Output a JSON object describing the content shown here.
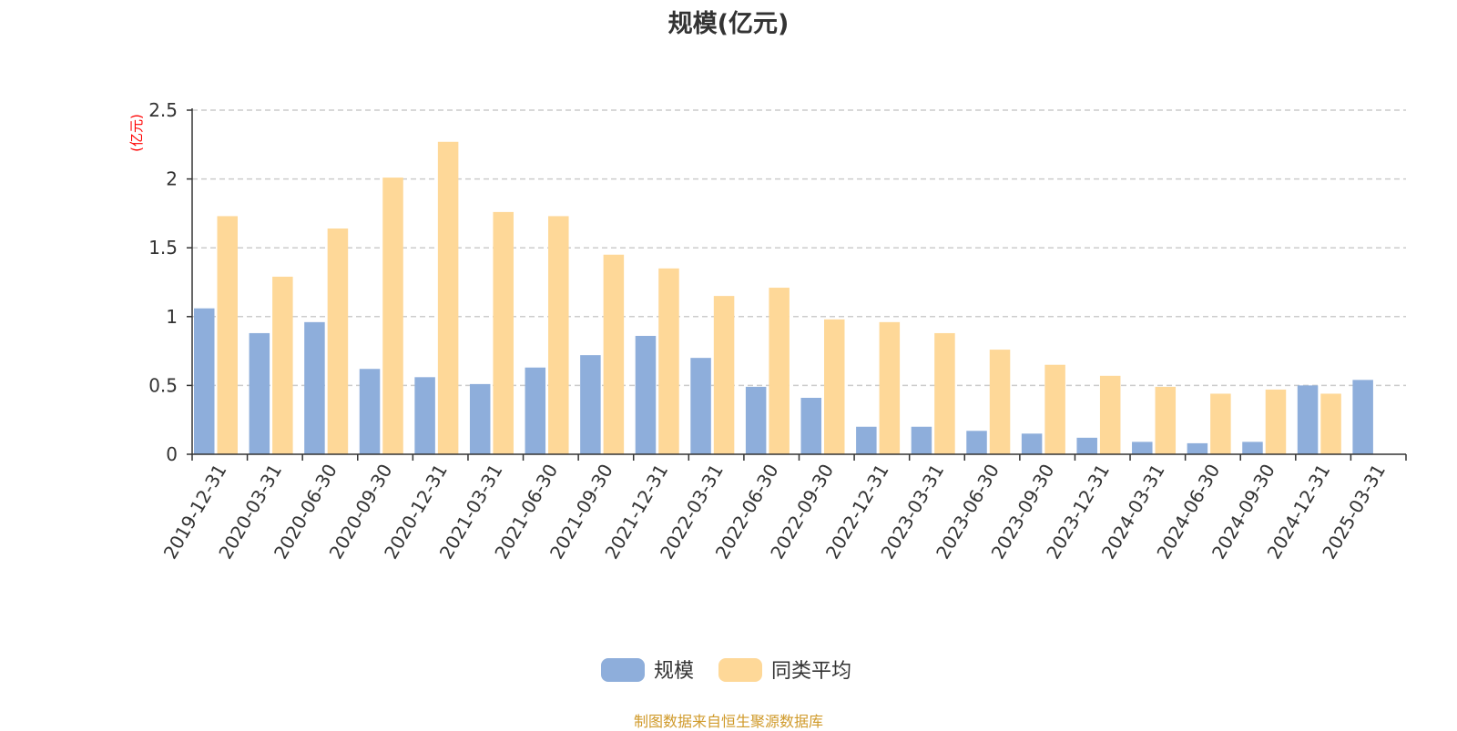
{
  "chart_data": {
    "type": "bar",
    "title": "规模(亿元)",
    "ylabel": "(亿元)",
    "xlabel": "",
    "ylim": [
      0,
      2.5
    ],
    "yticks": [
      0,
      0.5,
      1,
      1.5,
      2,
      2.5
    ],
    "ytick_labels": [
      "0",
      "0.5",
      "1",
      "1.5",
      "2",
      "2.5"
    ],
    "grid": true,
    "legend_position": "bottom-center",
    "categories": [
      "2019-12-31",
      "2020-03-31",
      "2020-06-30",
      "2020-09-30",
      "2020-12-31",
      "2021-03-31",
      "2021-06-30",
      "2021-09-30",
      "2021-12-31",
      "2022-03-31",
      "2022-06-30",
      "2022-09-30",
      "2022-12-31",
      "2023-03-31",
      "2023-06-30",
      "2023-09-30",
      "2023-12-31",
      "2024-03-31",
      "2024-06-30",
      "2024-09-30",
      "2024-12-31",
      "2025-03-31"
    ],
    "series": [
      {
        "name": "规模",
        "color": "#8eaedb",
        "values": [
          1.06,
          0.88,
          0.96,
          0.62,
          0.56,
          0.51,
          0.63,
          0.72,
          0.86,
          0.7,
          0.49,
          0.41,
          0.2,
          0.2,
          0.17,
          0.15,
          0.12,
          0.09,
          0.08,
          0.09,
          0.5,
          0.54
        ]
      },
      {
        "name": "同类平均",
        "color": "#fed898",
        "values": [
          1.73,
          1.29,
          1.64,
          2.01,
          2.27,
          1.76,
          1.73,
          1.45,
          1.35,
          1.15,
          1.21,
          0.98,
          0.96,
          0.88,
          0.76,
          0.65,
          0.57,
          0.49,
          0.44,
          0.47,
          0.44,
          null
        ]
      }
    ]
  },
  "colors": {
    "title": "#333333",
    "axis": "#333333",
    "grid": "#cccccc",
    "unit_label": "#ff0000",
    "source_note": "#d09a2a"
  },
  "source_note": "制图数据来自恒生聚源数据库"
}
